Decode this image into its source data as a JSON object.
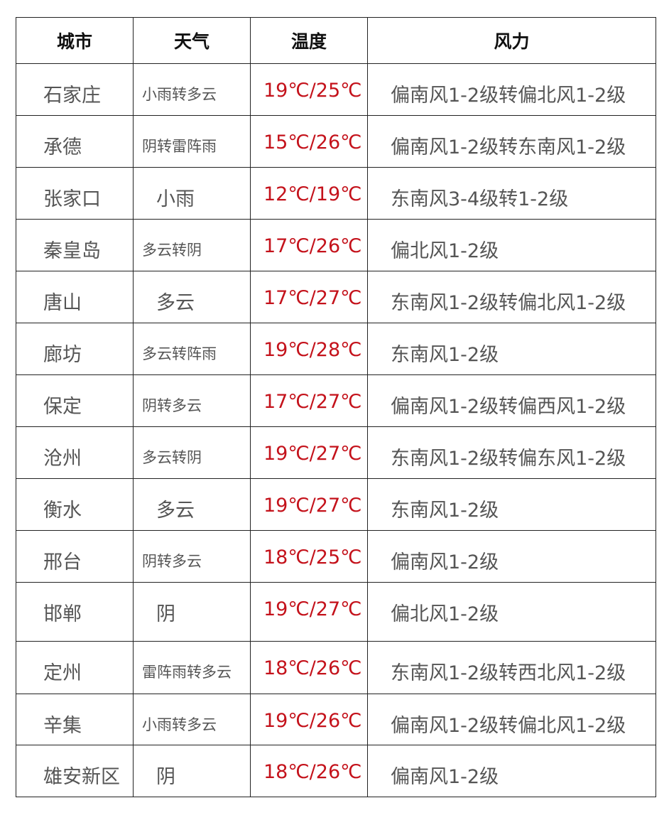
{
  "header": {
    "city": "城市",
    "weather": "天气",
    "temperature": "温度",
    "wind": "风力"
  },
  "colors": {
    "temperature": "#c4121b",
    "text": "#555555",
    "border": "#222222"
  },
  "rows": [
    {
      "city": "石家庄",
      "weather": "小雨转多云",
      "temperature": "19℃/25℃",
      "wind": "偏南风1-2级转偏北风1-2级"
    },
    {
      "city": "承德",
      "weather": "阴转雷阵雨",
      "temperature": "15℃/26℃",
      "wind": "偏南风1-2级转东南风1-2级"
    },
    {
      "city": "张家口",
      "weather": "小雨",
      "temperature": "12℃/19℃",
      "wind": "东南风3-4级转1-2级"
    },
    {
      "city": "秦皇岛",
      "weather": "多云转阴",
      "temperature": "17℃/26℃",
      "wind": "偏北风1-2级"
    },
    {
      "city": "唐山",
      "weather": "多云",
      "temperature": "17℃/27℃",
      "wind": "东南风1-2级转偏北风1-2级"
    },
    {
      "city": "廊坊",
      "weather": "多云转阵雨",
      "temperature": "19℃/28℃",
      "wind": "东南风1-2级"
    },
    {
      "city": "保定",
      "weather": "阴转多云",
      "temperature": "17℃/27℃",
      "wind": "偏南风1-2级转偏西风1-2级"
    },
    {
      "city": "沧州",
      "weather": "多云转阴",
      "temperature": "19℃/27℃",
      "wind": "东南风1-2级转偏东风1-2级"
    },
    {
      "city": "衡水",
      "weather": "多云",
      "temperature": "19℃/27℃",
      "wind": "东南风1-2级"
    },
    {
      "city": "邢台",
      "weather": "阴转多云",
      "temperature": "18℃/25℃",
      "wind": "偏南风1-2级"
    },
    {
      "city": "邯郸",
      "weather": "阴",
      "temperature": "19℃/27℃",
      "wind": "偏北风1-2级"
    },
    {
      "city": "定州",
      "weather": "雷阵雨转多云",
      "temperature": "18℃/26℃",
      "wind": "东南风1-2级转西北风1-2级"
    },
    {
      "city": "辛集",
      "weather": "小雨转多云",
      "temperature": "19℃/26℃",
      "wind": "偏南风1-2级转偏北风1-2级"
    },
    {
      "city": "雄安新区",
      "weather": "阴",
      "temperature": "18℃/26℃",
      "wind": "偏南风1-2级"
    }
  ]
}
